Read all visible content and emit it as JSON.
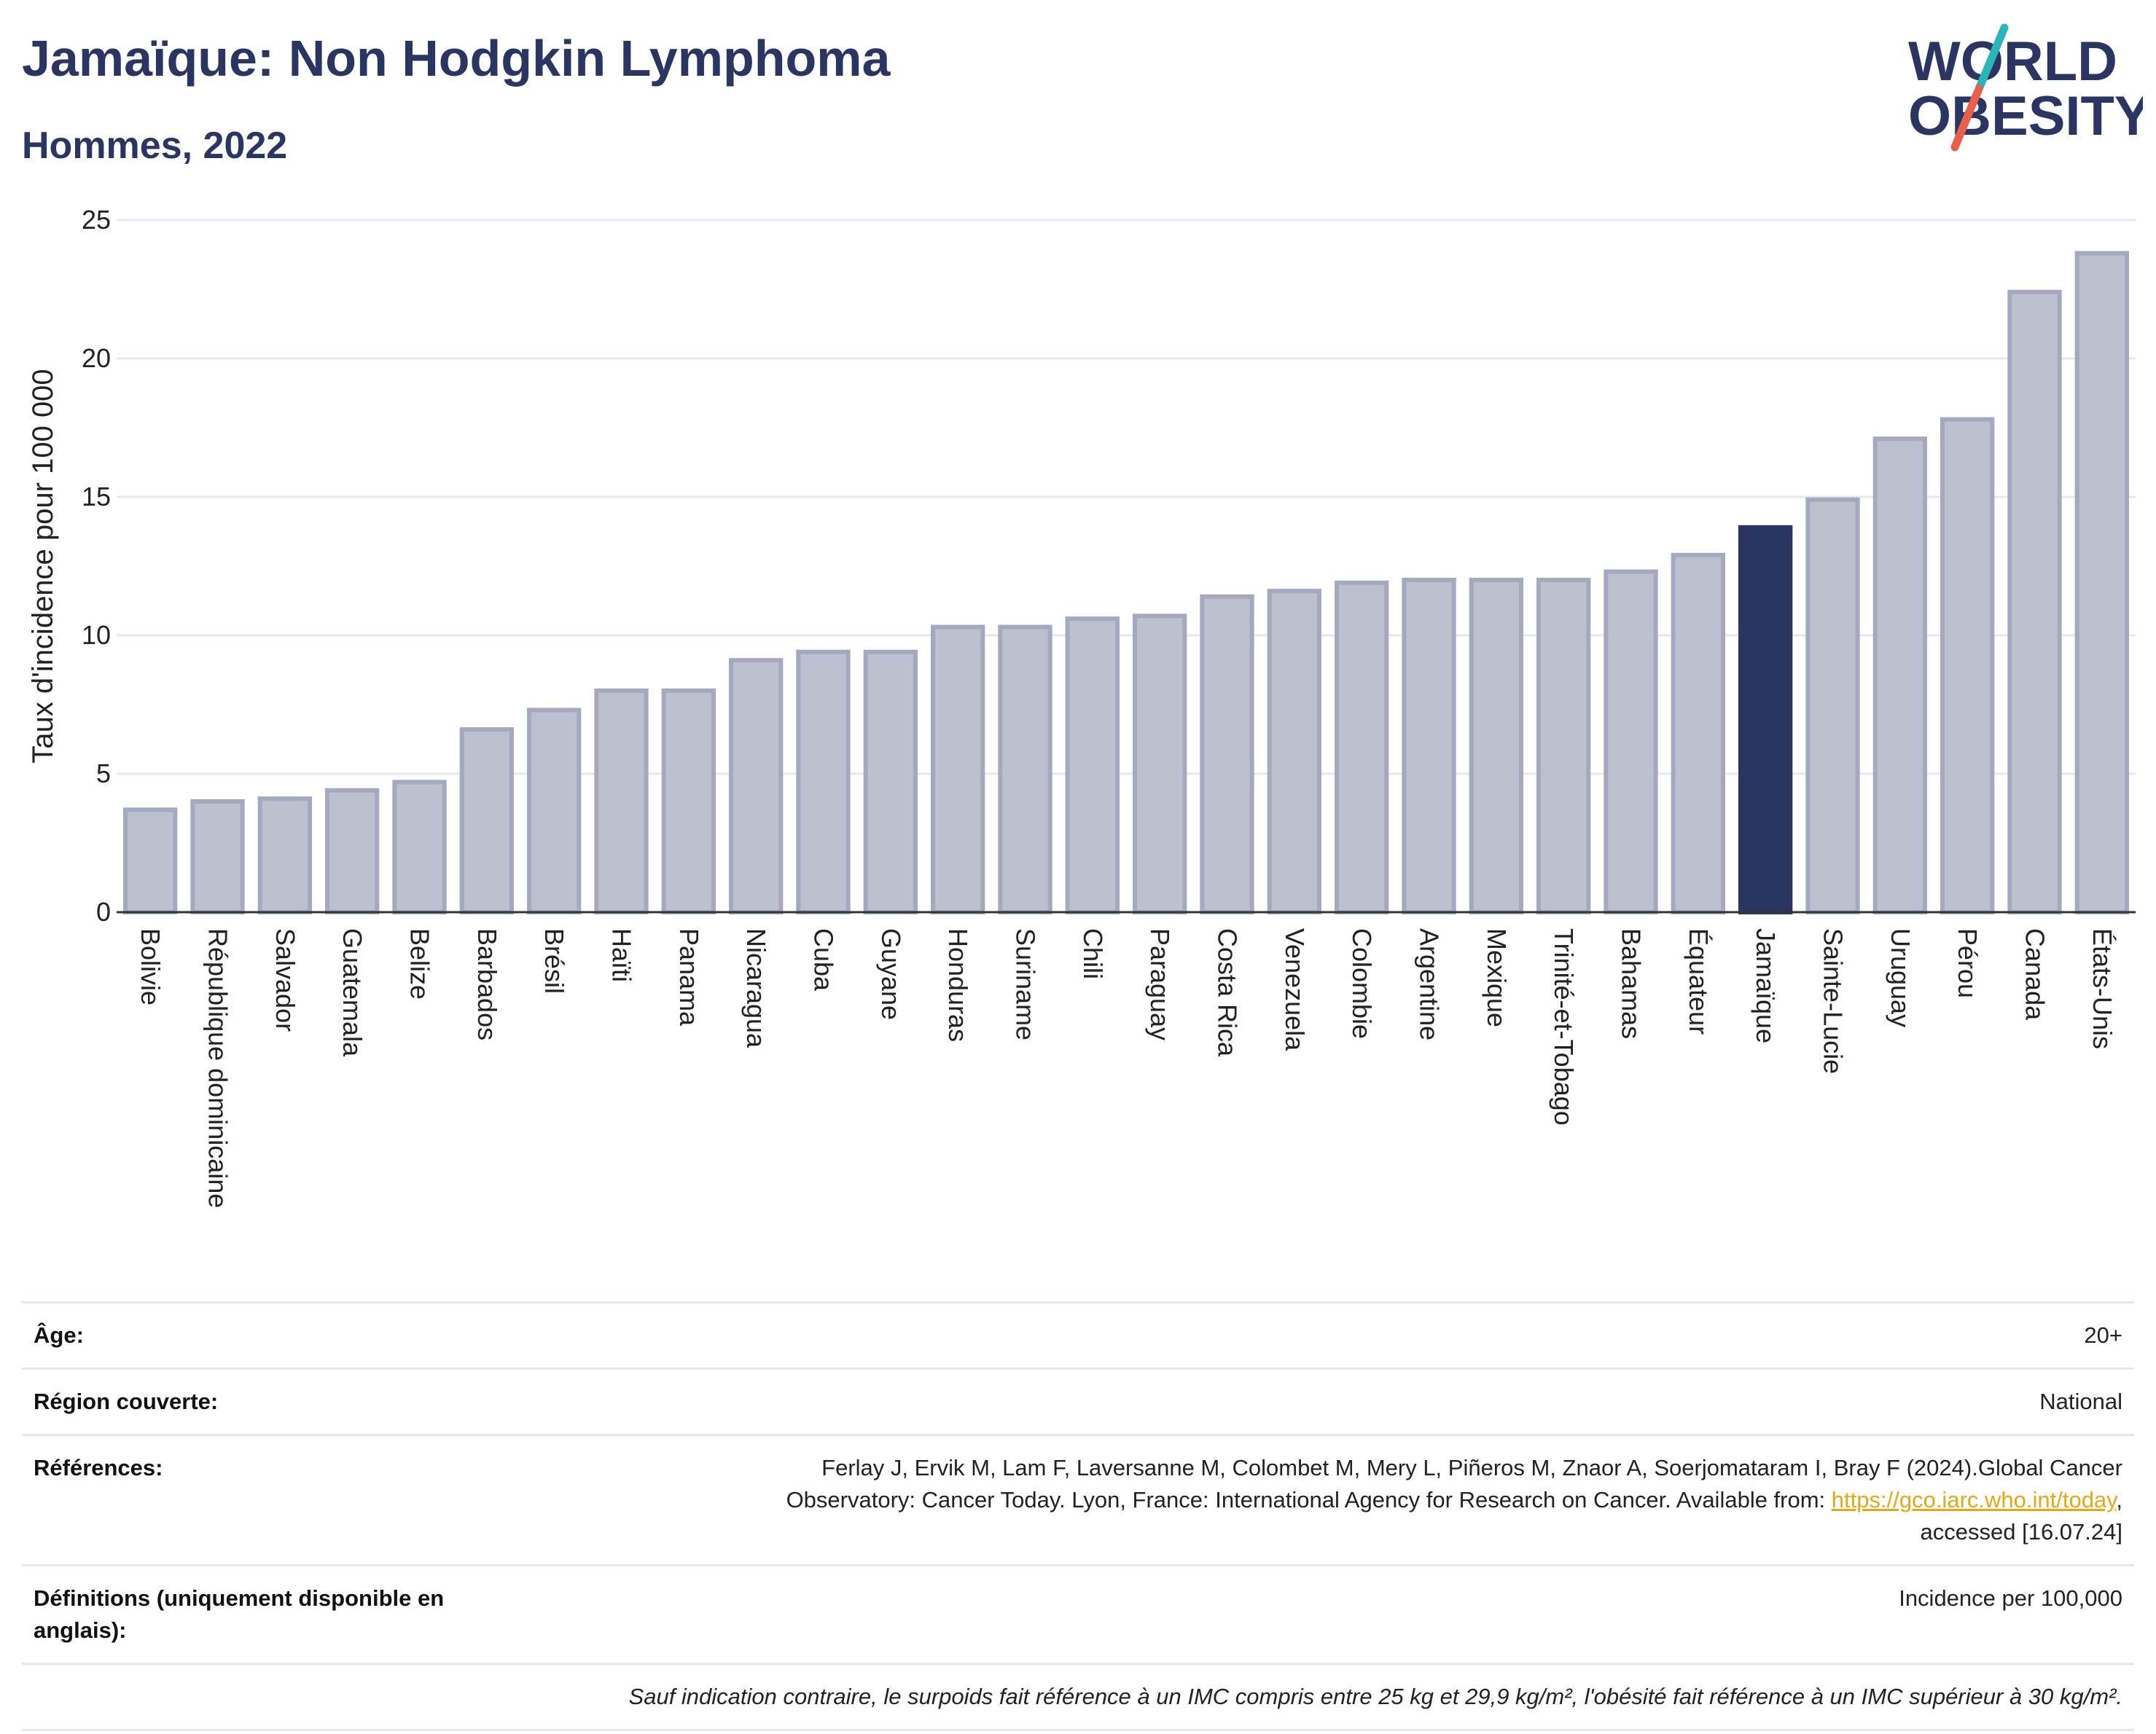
{
  "header": {
    "title": "Jamaïque: Non Hodgkin Lymphoma",
    "subtitle": "Hommes, 2022"
  },
  "logo": {
    "line1": "WORLD",
    "line2": "OBESITY",
    "colors": {
      "navy": "#2a3561",
      "teal": "#2bb5b8",
      "coral": "#e8604c"
    }
  },
  "colors": {
    "bar_fill": "#bcc0cf",
    "bar_stroke": "#a4a9bf",
    "highlight": "#2a3561",
    "grid": "#e6e8ef"
  },
  "chart_data": {
    "type": "bar",
    "categories": [
      "Bolivie",
      "République dominicaine",
      "Salvador",
      "Guatemala",
      "Belize",
      "Barbados",
      "Brésil",
      "Haïti",
      "Panama",
      "Nicaragua",
      "Cuba",
      "Guyane",
      "Honduras",
      "Suriname",
      "Chili",
      "Paraguay",
      "Costa Rica",
      "Venezuela",
      "Colombie",
      "Argentine",
      "Mexique",
      "Trinité-et-Tobago",
      "Bahamas",
      "Équateur",
      "Jamaïque",
      "Sainte-Lucie",
      "Uruguay",
      "Pérou",
      "Canada",
      "États-Unis"
    ],
    "values": [
      3.7,
      4.0,
      4.1,
      4.4,
      4.7,
      6.6,
      7.3,
      8.0,
      8.0,
      9.1,
      9.4,
      9.4,
      10.3,
      10.3,
      10.6,
      10.7,
      11.4,
      11.6,
      11.9,
      12.0,
      12.0,
      12.0,
      12.3,
      12.9,
      13.9,
      14.9,
      17.1,
      17.8,
      22.4,
      23.8
    ],
    "highlight": "Jamaïque",
    "title": "Jamaïque: Non Hodgkin Lymphoma",
    "subtitle": "Hommes, 2022",
    "xlabel": "",
    "ylabel": "Taux d'incidence pour 100 000",
    "ylim": [
      0,
      25
    ],
    "yticks": [
      0,
      5,
      10,
      15,
      20,
      25
    ],
    "grid": true
  },
  "info": {
    "age_label": "Âge:",
    "age_value": "20+",
    "region_label": "Région couverte:",
    "region_value": "National",
    "references_label": "Références:",
    "references_text_1": "Ferlay J, Ervik M, Lam F, Laversanne M, Colombet M, Mery L, Piñeros M, Znaor A, Soerjomataram I, Bray F (2024).Global Cancer",
    "references_text_2": "Observatory: Cancer Today. Lyon, France: International Agency for Research on Cancer. Available from: ",
    "references_link": "https://gco.iarc.who.int/today",
    "references_text_3": ",",
    "references_text_4": "accessed [16.07.24]",
    "definitions_label": "Définitions (uniquement disponible en anglais):",
    "definitions_value": "Incidence per 100,000",
    "note": "Sauf indication contraire, le surpoids fait référence à un IMC compris entre 25 kg et 29,9 kg/m², l'obésité fait référence à un IMC supérieur à 30 kg/m²."
  }
}
